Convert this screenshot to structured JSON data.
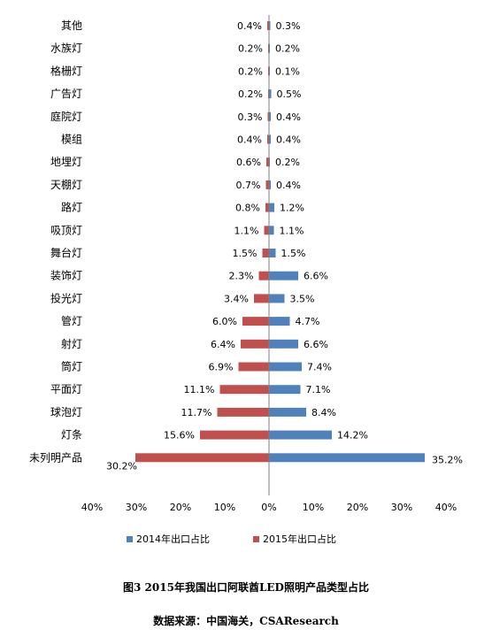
{
  "chart_data": {
    "type": "bar",
    "orientation": "horizontal-diverging",
    "categories": [
      "其他",
      "水族灯",
      "格栅灯",
      "广告灯",
      "庭院灯",
      "模组",
      "地埋灯",
      "天棚灯",
      "路灯",
      "吸顶灯",
      "舞台灯",
      "装饰灯",
      "投光灯",
      "管灯",
      "射灯",
      "筒灯",
      "平面灯",
      "球泡灯",
      "灯条",
      "未列明产品"
    ],
    "series": [
      {
        "name": "2014年出口占比",
        "color": "#4f81bd",
        "direction": "right",
        "values": [
          0.3,
          0.2,
          0.1,
          0.5,
          0.4,
          0.4,
          0.2,
          0.4,
          1.2,
          1.1,
          1.5,
          6.6,
          3.5,
          4.7,
          6.6,
          7.4,
          7.1,
          8.4,
          14.2,
          35.2
        ],
        "labels": [
          "0.3%",
          "0.2%",
          "0.1%",
          "0.5%",
          "0.4%",
          "0.4%",
          "0.2%",
          "0.4%",
          "1.2%",
          "1.1%",
          "1.5%",
          "6.6%",
          "3.5%",
          "4.7%",
          "6.6%",
          "7.4%",
          "7.1%",
          "8.4%",
          "14.2%",
          "35.2%"
        ]
      },
      {
        "name": "2015年出口占比",
        "color": "#c0504d",
        "direction": "left",
        "values": [
          0.4,
          0.2,
          0.2,
          0.2,
          0.3,
          0.4,
          0.6,
          0.7,
          0.8,
          1.1,
          1.5,
          2.3,
          3.4,
          6.0,
          6.4,
          6.9,
          11.1,
          11.7,
          15.6,
          30.2
        ],
        "labels": [
          "0.4%",
          "0.2%",
          "0.2%",
          "0.2%",
          "0.3%",
          "0.4%",
          "0.6%",
          "0.7%",
          "0.8%",
          "1.1%",
          "1.5%",
          "2.3%",
          "3.4%",
          "6.0%",
          "6.4%",
          "6.9%",
          "11.1%",
          "11.7%",
          "15.6%",
          "30.2%"
        ]
      }
    ],
    "xlim": [
      -40,
      40
    ],
    "x_ticks": [
      -40,
      -30,
      -20,
      -10,
      0,
      10,
      20,
      30,
      40
    ],
    "x_tick_labels": [
      "40%",
      "30%",
      "20%",
      "10%",
      "0%",
      "10%",
      "20%",
      "30%",
      "40%"
    ],
    "grid": false,
    "legend_position": "bottom"
  },
  "caption": {
    "title": "图3 2015年我国出口阿联酋LED照明产品类型占比",
    "source": "数据来源：中国海关，CSAResearch"
  }
}
